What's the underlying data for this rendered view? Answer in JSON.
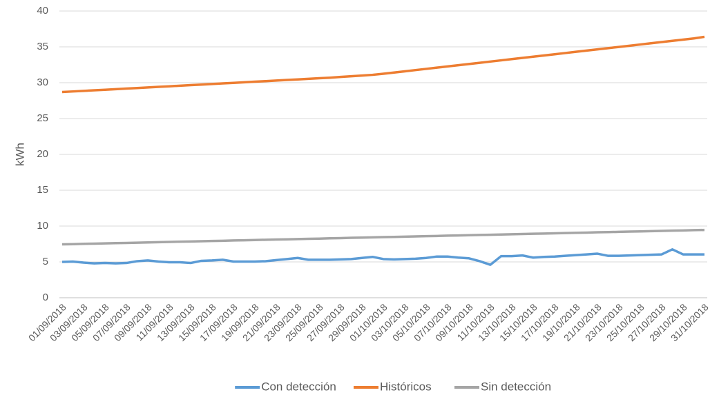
{
  "chart_data": {
    "type": "line",
    "y_label": "kWh",
    "categories": [
      "01/09/2018",
      null,
      "03/09/2018",
      null,
      "05/09/2018",
      null,
      "07/09/2018",
      null,
      "09/09/2018",
      null,
      "11/09/2018",
      null,
      "13/09/2018",
      null,
      "15/09/2018",
      null,
      "17/09/2018",
      null,
      "19/09/2018",
      null,
      "21/09/2018",
      null,
      "23/09/2018",
      null,
      "25/09/2018",
      null,
      "27/09/2018",
      null,
      "29/09/2018",
      null,
      "01/10/2018",
      null,
      "03/10/2018",
      null,
      "05/10/2018",
      null,
      "07/10/2018",
      null,
      "09/10/2018",
      null,
      "11/10/2018",
      null,
      "13/10/2018",
      null,
      "15/10/2018",
      null,
      "17/10/2018",
      null,
      "19/10/2018",
      null,
      "21/10/2018",
      null,
      "23/10/2018",
      null,
      "25/10/2018",
      null,
      "27/10/2018",
      null,
      "29/10/2018",
      null,
      "31/10/2018"
    ],
    "series": [
      {
        "name": "Con detección",
        "color": "#5b9bd5",
        "values": [
          5.0,
          5.05,
          4.9,
          4.8,
          4.85,
          4.8,
          4.85,
          5.1,
          5.2,
          5.05,
          4.95,
          4.95,
          4.85,
          5.15,
          5.2,
          5.3,
          5.05,
          5.05,
          5.05,
          5.1,
          5.25,
          5.4,
          5.55,
          5.3,
          5.3,
          5.3,
          5.35,
          5.4,
          5.55,
          5.7,
          5.4,
          5.35,
          5.4,
          5.45,
          5.55,
          5.75,
          5.75,
          5.6,
          5.5,
          5.1,
          4.6,
          5.8,
          5.8,
          5.9,
          5.6,
          5.7,
          5.75,
          5.85,
          5.95,
          6.05,
          6.15,
          5.85,
          5.85,
          5.9,
          5.95,
          6.0,
          6.05,
          6.75,
          6.05,
          6.05,
          6.05
        ]
      },
      {
        "name": "Históricos",
        "color": "#ed7d31",
        "values": [
          28.7,
          28.78,
          28.86,
          28.94,
          29.02,
          29.1,
          29.18,
          29.26,
          29.34,
          29.42,
          29.5,
          29.58,
          29.66,
          29.74,
          29.82,
          29.9,
          29.98,
          30.06,
          30.14,
          30.22,
          30.3,
          30.38,
          30.46,
          30.54,
          30.62,
          30.7,
          30.8,
          30.9,
          31.0,
          31.1,
          31.25,
          31.42,
          31.59,
          31.76,
          31.93,
          32.1,
          32.27,
          32.44,
          32.61,
          32.78,
          32.95,
          33.12,
          33.29,
          33.46,
          33.63,
          33.8,
          33.97,
          34.14,
          34.31,
          34.48,
          34.65,
          34.82,
          34.99,
          35.16,
          35.33,
          35.5,
          35.67,
          35.84,
          36.01,
          36.18,
          36.4
        ]
      },
      {
        "name": "Sin detección",
        "color": "#a5a5a5",
        "values": [
          7.45,
          7.48,
          7.52,
          7.55,
          7.58,
          7.62,
          7.65,
          7.68,
          7.72,
          7.75,
          7.79,
          7.82,
          7.85,
          7.89,
          7.92,
          7.95,
          7.99,
          8.02,
          8.05,
          8.09,
          8.12,
          8.15,
          8.19,
          8.22,
          8.25,
          8.29,
          8.32,
          8.36,
          8.39,
          8.42,
          8.46,
          8.49,
          8.52,
          8.56,
          8.59,
          8.62,
          8.66,
          8.69,
          8.72,
          8.76,
          8.79,
          8.82,
          8.86,
          8.89,
          8.93,
          8.96,
          8.99,
          9.03,
          9.06,
          9.09,
          9.13,
          9.16,
          9.19,
          9.23,
          9.26,
          9.29,
          9.33,
          9.36,
          9.39,
          9.43,
          9.46
        ]
      }
    ],
    "ylim": [
      0,
      40
    ],
    "yticks": [
      0,
      5,
      10,
      15,
      20,
      25,
      30,
      35,
      40
    ],
    "grid": true,
    "legend": "bottom"
  }
}
